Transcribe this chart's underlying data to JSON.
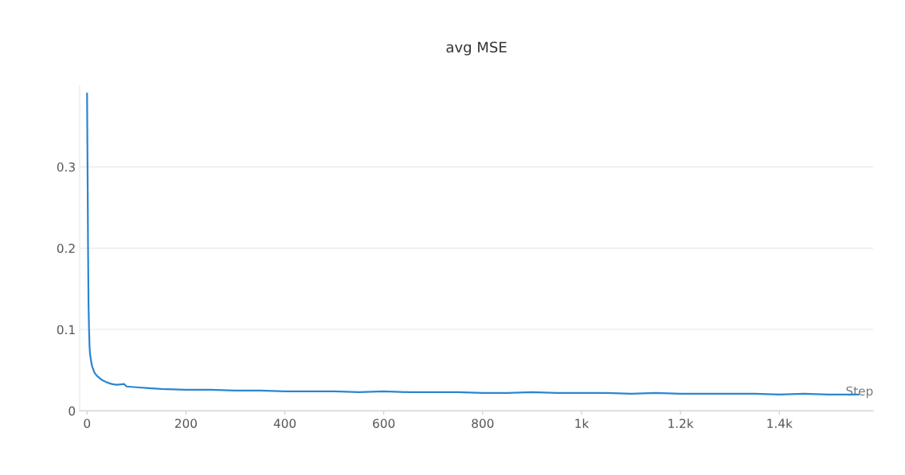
{
  "chart_data": {
    "type": "line",
    "title": "avg MSE",
    "xlabel": "Step",
    "x": [
      0,
      1,
      2,
      3,
      4,
      5,
      6,
      8,
      10,
      15,
      20,
      30,
      40,
      50,
      60,
      75,
      80,
      100,
      125,
      150,
      200,
      250,
      300,
      350,
      400,
      450,
      500,
      550,
      600,
      650,
      700,
      750,
      800,
      850,
      900,
      950,
      1000,
      1050,
      1100,
      1150,
      1200,
      1250,
      1300,
      1350,
      1400,
      1450,
      1500,
      1560
    ],
    "series": [
      {
        "color": "#2a86d1",
        "values": [
          0.39,
          0.3,
          0.2,
          0.13,
          0.1,
          0.08,
          0.07,
          0.062,
          0.055,
          0.047,
          0.043,
          0.038,
          0.035,
          0.033,
          0.032,
          0.033,
          0.03,
          0.029,
          0.028,
          0.027,
          0.026,
          0.026,
          0.025,
          0.025,
          0.024,
          0.024,
          0.024,
          0.023,
          0.024,
          0.023,
          0.023,
          0.023,
          0.022,
          0.022,
          0.023,
          0.022,
          0.022,
          0.022,
          0.021,
          0.022,
          0.021,
          0.021,
          0.021,
          0.021,
          0.02,
          0.021,
          0.02,
          0.02
        ]
      }
    ],
    "xlim": [
      -15,
      1590
    ],
    "ylim": [
      0,
      0.4
    ],
    "xticks": [
      0,
      200,
      400,
      600,
      800,
      {
        "value": 1000,
        "label": "1k"
      },
      {
        "value": 1200,
        "label": "1.2k"
      },
      {
        "value": 1400,
        "label": "1.4k"
      }
    ],
    "yticks": [
      0,
      0.1,
      0.2,
      0.3
    ],
    "grid": "y",
    "legend": false,
    "marker": "none",
    "line_style": "solid"
  }
}
